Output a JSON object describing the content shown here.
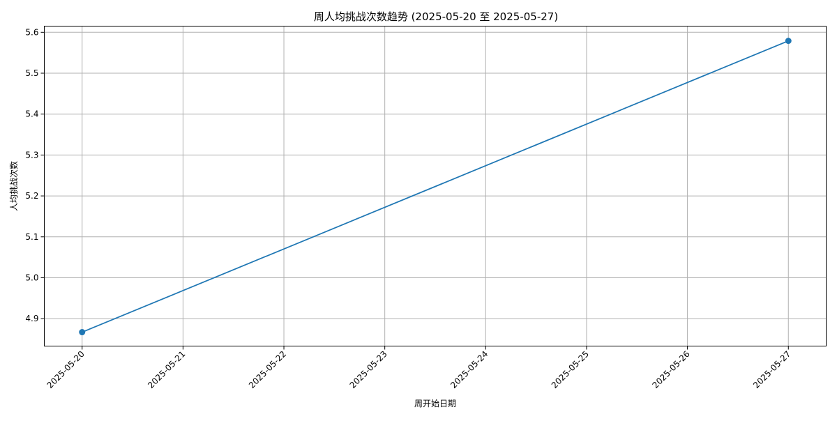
{
  "chart_data": {
    "type": "line",
    "title": "周人均挑战次数趋势 (2025-05-20 至 2025-05-27)",
    "xlabel": "周开始日期",
    "ylabel": "人均挑战次数",
    "x_ticks": [
      "2025-05-20",
      "2025-05-21",
      "2025-05-22",
      "2025-05-23",
      "2025-05-24",
      "2025-05-25",
      "2025-05-26",
      "2025-05-27"
    ],
    "y_ticks": [
      "4.9",
      "5.0",
      "5.1",
      "5.2",
      "5.3",
      "5.4",
      "5.5",
      "5.6"
    ],
    "xlim": [
      "2025-05-19T15:00",
      "2025-05-27T09:00"
    ],
    "ylim": [
      4.833,
      5.615
    ],
    "grid": true,
    "series": [
      {
        "color": "#1f77b4",
        "marker": "circle",
        "points": [
          {
            "x": "2025-05-20",
            "y": 4.867
          },
          {
            "x": "2025-05-27",
            "y": 5.579
          }
        ]
      }
    ]
  }
}
